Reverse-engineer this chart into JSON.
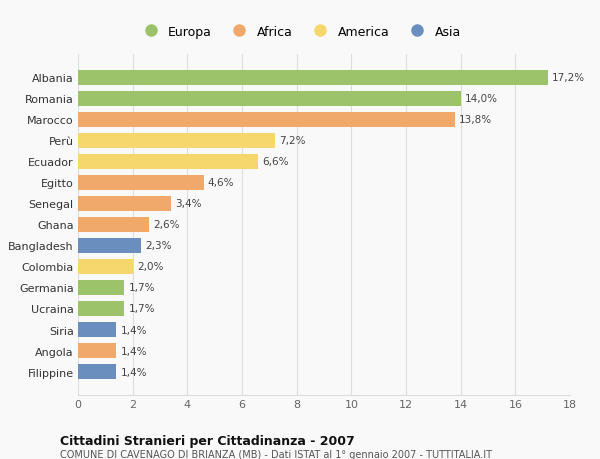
{
  "countries": [
    "Albania",
    "Romania",
    "Marocco",
    "Perù",
    "Ecuador",
    "Egitto",
    "Senegal",
    "Ghana",
    "Bangladesh",
    "Colombia",
    "Germania",
    "Ucraina",
    "Siria",
    "Angola",
    "Filippine"
  ],
  "values": [
    17.2,
    14.0,
    13.8,
    7.2,
    6.6,
    4.6,
    3.4,
    2.6,
    2.3,
    2.0,
    1.7,
    1.7,
    1.4,
    1.4,
    1.4
  ],
  "labels": [
    "17,2%",
    "14,0%",
    "13,8%",
    "7,2%",
    "6,6%",
    "4,6%",
    "3,4%",
    "2,6%",
    "2,3%",
    "2,0%",
    "1,7%",
    "1,7%",
    "1,4%",
    "1,4%",
    "1,4%"
  ],
  "continents": [
    "Europa",
    "Europa",
    "Africa",
    "America",
    "America",
    "Africa",
    "Africa",
    "Africa",
    "Asia",
    "America",
    "Europa",
    "Europa",
    "Asia",
    "Africa",
    "Asia"
  ],
  "continent_colors": {
    "Europa": "#9DC36A",
    "Africa": "#F0A96B",
    "America": "#F5D76E",
    "Asia": "#6A8FBF"
  },
  "legend_order": [
    "Europa",
    "Africa",
    "America",
    "Asia"
  ],
  "title": "Cittadini Stranieri per Cittadinanza - 2007",
  "subtitle": "COMUNE DI CAVENAGO DI BRIANZA (MB) - Dati ISTAT al 1° gennaio 2007 - TUTTITALIA.IT",
  "xlim": [
    0,
    18
  ],
  "xticks": [
    0,
    2,
    4,
    6,
    8,
    10,
    12,
    14,
    16,
    18
  ],
  "background_color": "#f9f9f9",
  "grid_color": "#dddddd",
  "bar_height": 0.72
}
